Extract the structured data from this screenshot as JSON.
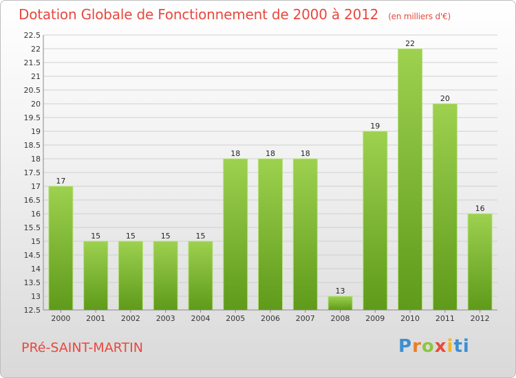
{
  "header": {
    "title": "Dotation Globale de Fonctionnement de 2000 à 2012",
    "unit": "(en milliers d'€)"
  },
  "footer": {
    "commune": "PRé-SAINT-MARTIN",
    "logo_letters": [
      "P",
      "r",
      "o",
      "x",
      "i",
      "t",
      "i"
    ]
  },
  "colors": {
    "title": "#e8483e",
    "bar_light": "#9dd14f",
    "bar_dark": "#5f9a1a",
    "grid": "#cfcfcf"
  },
  "chart_data": {
    "type": "bar",
    "title": "Dotation Globale de Fonctionnement de 2000 à 2012",
    "categories": [
      "2000",
      "2001",
      "2002",
      "2003",
      "2004",
      "2005",
      "2006",
      "2007",
      "2008",
      "2009",
      "2010",
      "2011",
      "2012"
    ],
    "values": [
      17,
      15,
      15,
      15,
      15,
      18,
      18,
      18,
      13,
      19,
      22,
      20,
      16
    ],
    "data_labels": [
      "17",
      "15",
      "15",
      "15",
      "15",
      "18",
      "18",
      "18",
      "13",
      "19",
      "22",
      "20",
      "16"
    ],
    "y_ticks": [
      "12.5",
      "13",
      "13.5",
      "14",
      "14.5",
      "15",
      "15.5",
      "16",
      "16.5",
      "17",
      "17.5",
      "18",
      "18.5",
      "19",
      "19.5",
      "20",
      "20.5",
      "21",
      "21.5",
      "22",
      "22.5"
    ],
    "ylim": [
      12.5,
      22.5
    ],
    "grid": true,
    "legend": "none"
  }
}
